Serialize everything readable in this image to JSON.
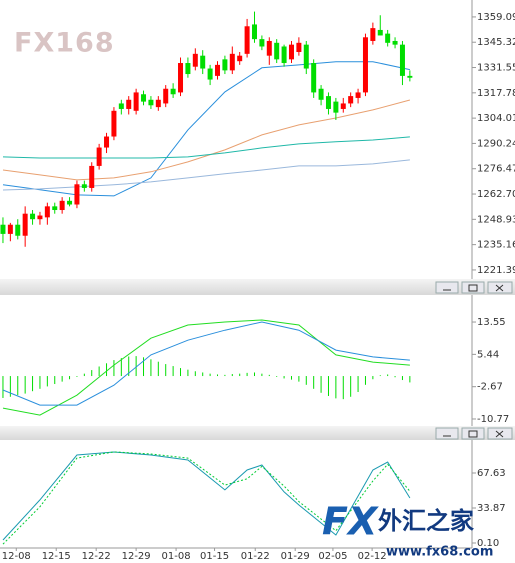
{
  "chart_data": [
    {
      "type": "candlestick",
      "xlim": [
        -0.4,
        63.4
      ],
      "ylim": [
        1217.0,
        1368.3
      ],
      "yticks": [
        1359.09,
        1345.32,
        1331.55,
        1317.78,
        1304.01,
        1290.24,
        1276.47,
        {
          "value": 1262.7,
          "label": "1262.70"
        },
        1248.93,
        1235.16,
        1221.39
      ],
      "up_color": "#ff0000",
      "down_color": "#00dd00",
      "x": [
        0,
        1,
        2,
        3,
        4,
        5,
        6,
        7,
        8,
        9,
        10,
        11,
        12,
        13,
        14,
        15,
        16,
        17,
        18,
        19,
        20,
        21,
        22,
        23,
        24,
        25,
        26,
        27,
        28,
        29,
        30,
        31,
        32,
        33,
        34,
        35,
        36,
        37,
        38,
        39,
        40,
        41,
        42,
        43,
        44,
        45,
        46,
        47,
        48,
        49,
        50,
        51,
        52,
        53,
        54,
        55
      ],
      "open": [
        1246,
        1241,
        1246,
        1240,
        1252,
        1249,
        1250,
        1256,
        1254,
        1259,
        1257,
        1268,
        1266,
        1278,
        1288,
        1294,
        1312,
        1309,
        1308,
        1317,
        1314,
        1310,
        1312,
        1320,
        1318,
        1334,
        1332,
        1338,
        1331,
        1327,
        1336,
        1330,
        1335,
        1339,
        1355,
        1347,
        1338,
        1345,
        1343,
        1336,
        1340,
        1344,
        1334,
        1320,
        1316,
        1313,
        1309,
        1312,
        1315,
        1318,
        1346,
        1352,
        1350,
        1346,
        1344,
        1327
      ],
      "high": [
        1250,
        1247,
        1249,
        1256,
        1254,
        1253,
        1258,
        1258,
        1261,
        1261,
        1270,
        1270,
        1280,
        1290,
        1296,
        1310,
        1314,
        1316,
        1320,
        1319,
        1316,
        1316,
        1322,
        1323,
        1337,
        1337,
        1342,
        1341,
        1333,
        1335,
        1338,
        1343,
        1340,
        1358,
        1362,
        1349,
        1348,
        1347,
        1344,
        1346,
        1348,
        1346,
        1336,
        1322,
        1318,
        1315,
        1315,
        1318,
        1320,
        1350,
        1356,
        1360,
        1352,
        1348,
        1346,
        1330
      ],
      "low": [
        1236,
        1237,
        1238,
        1234,
        1246,
        1246,
        1246,
        1252,
        1252,
        1256,
        1255,
        1264,
        1264,
        1276,
        1285,
        1292,
        1306,
        1306,
        1306,
        1311,
        1309,
        1308,
        1310,
        1315,
        1316,
        1326,
        1330,
        1328,
        1322,
        1325,
        1328,
        1328,
        1333,
        1337,
        1345,
        1341,
        1333,
        1334,
        1332,
        1334,
        1338,
        1328,
        1315,
        1311,
        1306,
        1303,
        1307,
        1310,
        1312,
        1316,
        1344,
        1349,
        1343,
        1342,
        1322,
        1324
      ],
      "close": [
        1241,
        1246,
        1240,
        1252,
        1249,
        1251,
        1256,
        1254,
        1259,
        1257,
        1268,
        1266,
        1278,
        1288,
        1294,
        1308,
        1309,
        1314,
        1318,
        1313,
        1311,
        1314,
        1320,
        1317,
        1334,
        1328,
        1339,
        1331,
        1325,
        1333,
        1330,
        1339,
        1338,
        1354,
        1347,
        1343,
        1346,
        1336,
        1334,
        1344,
        1345,
        1331,
        1318,
        1314,
        1309,
        1307,
        1312,
        1316,
        1318,
        1348,
        1353,
        1349,
        1345,
        1344,
        1327,
        1326
      ],
      "series": [
        {
          "color": "#2a8fdc",
          "x": [
            0,
            5,
            10,
            15,
            20,
            25,
            30,
            35,
            40,
            45,
            50,
            55
          ],
          "values": [
            1267.7,
            1265.0,
            1262.2,
            1261.7,
            1271.5,
            1297.6,
            1318.3,
            1331.4,
            1333.0,
            1334.7,
            1334.7,
            1330.4
          ]
        },
        {
          "color": "#e8a070",
          "x": [
            0,
            5,
            10,
            15,
            20,
            25,
            30,
            35,
            40,
            45,
            50,
            55
          ],
          "values": [
            1275.8,
            1273.1,
            1270.4,
            1271.5,
            1274.8,
            1280.2,
            1286.7,
            1294.9,
            1300.3,
            1304.1,
            1308.5,
            1313.9
          ]
        },
        {
          "color": "#20b8a8",
          "x": [
            0,
            5,
            10,
            15,
            20,
            25,
            30,
            35,
            40,
            45,
            50,
            55
          ],
          "values": [
            1282.9,
            1282.3,
            1282.3,
            1282.3,
            1282.3,
            1282.9,
            1285.1,
            1287.8,
            1290.0,
            1291.1,
            1292.1,
            1293.8
          ]
        },
        {
          "color": "#9ab8dc",
          "x": [
            0,
            5,
            10,
            15,
            20,
            25,
            30,
            35,
            40,
            45,
            50,
            55
          ],
          "values": [
            1264.9,
            1265.5,
            1266.6,
            1267.7,
            1269.3,
            1271.5,
            1273.7,
            1275.8,
            1278.0,
            1278.0,
            1279.1,
            1281.3
          ]
        }
      ]
    },
    {
      "type": "macd",
      "xlim": [
        -0.4,
        63.4
      ],
      "ylim": [
        -12.28,
        20.08
      ],
      "yticks": [
        13.55,
        5.44,
        -2.67,
        -10.77
      ],
      "x": [
        0,
        1,
        2,
        3,
        4,
        5,
        6,
        7,
        8,
        9,
        10,
        11,
        12,
        13,
        14,
        15,
        16,
        17,
        18,
        19,
        20,
        21,
        22,
        23,
        24,
        25,
        26,
        27,
        28,
        29,
        30,
        31,
        32,
        33,
        34,
        35,
        36,
        37,
        38,
        39,
        40,
        41,
        42,
        43,
        44,
        45,
        46,
        47,
        48,
        49,
        50,
        51,
        52,
        53,
        54,
        55
      ],
      "histogram": {
        "color": "#00dd00",
        "values": [
          -5.5,
          -5.2,
          -4.8,
          -4.4,
          -3.8,
          -3.2,
          -2.6,
          -2.0,
          -1.4,
          -0.8,
          -0.2,
          0.6,
          1.5,
          2.4,
          3.2,
          4.0,
          4.5,
          4.9,
          5.0,
          4.7,
          4.2,
          3.6,
          3.0,
          2.5,
          2.0,
          1.6,
          1.2,
          0.9,
          0.6,
          0.4,
          0.3,
          0.5,
          0.6,
          0.8,
          0.9,
          0.6,
          0.3,
          -0.2,
          -0.6,
          -0.9,
          -1.4,
          -2.2,
          -3.2,
          -4.2,
          -5.0,
          -5.6,
          -5.8,
          -5.2,
          -4.0,
          -2.2,
          -0.8,
          0.2,
          0.4,
          -0.3,
          -1.0,
          -1.6
        ]
      },
      "series": [
        {
          "color": "#22dd22",
          "x": [
            0,
            5,
            10,
            15,
            20,
            25,
            30,
            35,
            40,
            45,
            50,
            55
          ],
          "values": [
            -8.05,
            -9.8,
            -4.8,
            2.75,
            9.5,
            12.8,
            13.55,
            14.05,
            12.8,
            5.3,
            3.5,
            2.75
          ]
        },
        {
          "color": "#2a8fdc",
          "x": [
            0,
            5,
            10,
            15,
            20,
            25,
            30,
            35,
            40,
            45,
            50,
            55
          ],
          "values": [
            -3.5,
            -7.3,
            -7.3,
            -2.3,
            5.3,
            9.0,
            11.5,
            13.55,
            11.5,
            6.5,
            4.8,
            4.0
          ]
        }
      ]
    },
    {
      "type": "line",
      "xlim": [
        -0.4,
        63.4
      ],
      "ylim": [
        -4.72,
        99.46
      ],
      "yticks": [
        67.63,
        33.87,
        {
          "value": 0.1,
          "label": "0.10"
        }
      ],
      "xticks": [
        {
          "value": 1.8,
          "label": "12-08"
        },
        {
          "value": 7.2,
          "label": "12-15"
        },
        {
          "value": 12.6,
          "label": "12-22"
        },
        {
          "value": 18.0,
          "label": "12-29"
        },
        {
          "value": 23.4,
          "label": "01-08"
        },
        {
          "value": 28.6,
          "label": "01-15"
        },
        {
          "value": 34.1,
          "label": "01-22"
        },
        {
          "value": 39.5,
          "label": "01-29"
        },
        {
          "value": 44.6,
          "label": "02-05"
        },
        {
          "value": 49.9,
          "label": "02-12"
        }
      ],
      "series": [
        {
          "color": "#1a9ab0",
          "x": [
            0,
            5,
            10,
            15,
            20,
            25,
            30,
            33,
            35,
            38,
            40,
            45,
            50,
            52,
            55
          ],
          "values": [
            2.99,
            41.7,
            85.0,
            87.9,
            85.0,
            80.2,
            51.3,
            70.5,
            75.3,
            49.4,
            36.8,
            7.8,
            70.5,
            78.2,
            43.5
          ]
        },
        {
          "color": "#00cc33",
          "style": "dotted",
          "x": [
            0,
            5,
            10,
            15,
            20,
            25,
            30,
            33,
            35,
            38,
            40,
            45,
            50,
            52,
            55
          ],
          "values": [
            -1.0,
            35,
            82,
            88,
            86,
            82,
            56,
            62,
            74,
            55,
            40,
            12,
            60,
            76,
            50
          ]
        }
      ]
    }
  ],
  "watermark": {
    "logo": "FX168",
    "brand_fx": "FX",
    "brand": "外汇之家",
    "url": "www.fx68.com"
  }
}
